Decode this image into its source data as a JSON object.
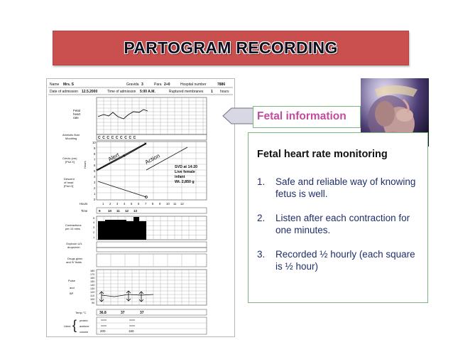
{
  "title": "PARTOGRAM RECORDING",
  "fetal_label": "Fetal information",
  "box": {
    "heading": "Fetal heart rate monitoring",
    "items": [
      {
        "num": "1.",
        "text": "Safe and reliable way of knowing fetus is well."
      },
      {
        "num": "2.",
        "text": "Listen after each contraction for one minutes."
      },
      {
        "num": "3.",
        "text": "Recorded ½ hourly (each square is ½ hour)"
      }
    ]
  },
  "partogram": {
    "name_label": "Name",
    "name_value": "Mrs. S",
    "gravida_label": "Gravida",
    "gravida_value": "3",
    "para_label": "Para",
    "para_value": "2+0",
    "hospital_label": "Hospital number",
    "hospital_value": "7886",
    "admission_date_label": "Date of admission",
    "admission_date_value": "12.5.2000",
    "admission_time_label": "Time of admission",
    "admission_time_value": "5:00 A.M.",
    "membranes_label": "Ruptured membranes",
    "membranes_value": "1",
    "membranes_unit": "hours",
    "fhr_label_1": "Fetal",
    "fhr_label_2": "heart",
    "fhr_label_3": "rate",
    "amniotic_label_1": "Amniotic fluid",
    "amniotic_label_2": "Moulding",
    "cervix_label_1": "Cervix (cm)",
    "cervix_label_2": "[Plot X]",
    "descent_label_1": "Descent",
    "descent_label_2": "of head",
    "descent_label_3": "[Plot O]",
    "hours_label": "Hours",
    "hours_side_label": "Hours",
    "time_label": "Time",
    "alert_label": "Alert",
    "action_label": "Action",
    "delivery_note": [
      "SVD at 14:20",
      "Live female",
      "infant",
      "Wt. 2,850 g"
    ],
    "contractions_label_1": "Contractions",
    "contractions_label_2": "per 10 mins",
    "oxytocin_label_1": "Oxytocin U/L",
    "oxytocin_label_2": "drops/min",
    "drugs_label_1": "Drugs given",
    "drugs_label_2": "and IV fluids",
    "pulse_label": "Pulse",
    "and_label": "and",
    "bp_label": "BP",
    "temp_label": "Temp °C",
    "urine_label": "Urine",
    "protein_label": "protein",
    "acetone_label": "acetone",
    "volume_label": "volume"
  }
}
